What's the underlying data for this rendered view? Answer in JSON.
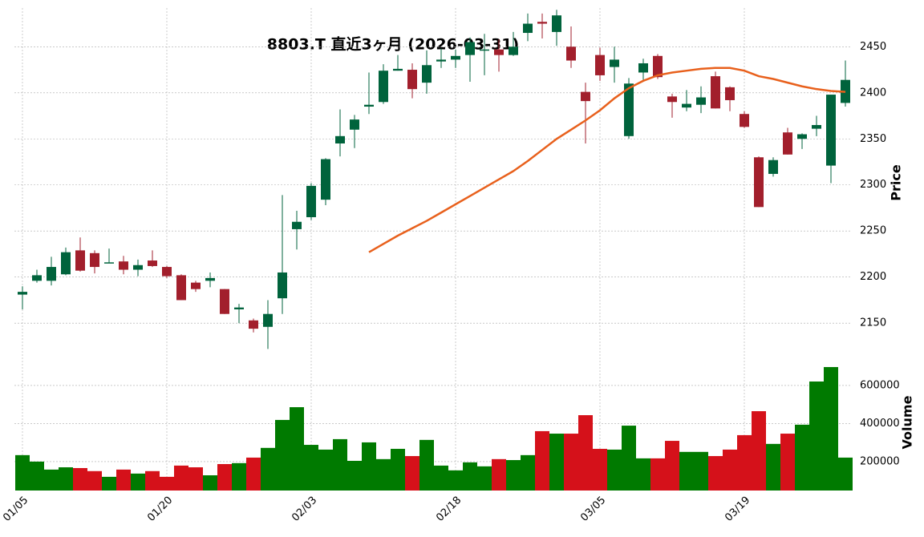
{
  "chart_data": {
    "type": "candlestick",
    "title": "8803.T 直近3ヶ月 (2026-03-31)",
    "categories": [
      "01/05",
      null,
      null,
      null,
      null,
      null,
      null,
      null,
      null,
      null,
      "01/20",
      null,
      null,
      null,
      null,
      null,
      null,
      null,
      null,
      null,
      "02/03",
      null,
      null,
      null,
      null,
      null,
      null,
      null,
      null,
      null,
      "02/18",
      null,
      null,
      null,
      null,
      null,
      null,
      null,
      null,
      null,
      "03/05",
      null,
      null,
      null,
      null,
      null,
      null,
      null,
      null,
      null,
      "03/19",
      null,
      null,
      null,
      null,
      null,
      null,
      null
    ],
    "open": [
      2181,
      2196,
      2196,
      2203,
      2229,
      2226,
      2215,
      2217,
      2208,
      2218,
      2211,
      2202,
      2194,
      2196,
      2187,
      2165,
      2153,
      2146,
      2177,
      2252,
      2265,
      2284,
      2345,
      2360,
      2385,
      2390,
      2424,
      2425,
      2411,
      2434,
      2436,
      2441,
      2446,
      2447,
      2441,
      2465,
      2477,
      2466,
      2450,
      2401,
      2441,
      2428,
      2353,
      2422,
      2440,
      2396,
      2384,
      2387,
      2418,
      2406,
      2377,
      2330,
      2312,
      2357,
      2350,
      2361,
      2321,
      2389
    ],
    "high": [
      2190,
      2208,
      2222,
      2232,
      2243,
      2229,
      2231,
      2223,
      2219,
      2229,
      2212,
      2203,
      2196,
      2205,
      2187,
      2171,
      2155,
      2175,
      2289,
      2272,
      2302,
      2329,
      2382,
      2376,
      2422,
      2431,
      2441,
      2432,
      2446,
      2448,
      2447,
      2460,
      2464,
      2458,
      2466,
      2486,
      2486,
      2490,
      2472,
      2411,
      2449,
      2450,
      2416,
      2437,
      2442,
      2399,
      2403,
      2407,
      2423,
      2407,
      2380,
      2331,
      2330,
      2362,
      2356,
      2375,
      2398,
      2435
    ],
    "low": [
      2165,
      2194,
      2191,
      2202,
      2206,
      2204,
      2215,
      2203,
      2201,
      2211,
      2199,
      2175,
      2184,
      2189,
      2160,
      2150,
      2140,
      2122,
      2160,
      2230,
      2262,
      2278,
      2331,
      2340,
      2377,
      2388,
      2424,
      2394,
      2399,
      2427,
      2427,
      2412,
      2419,
      2423,
      2440,
      2456,
      2459,
      2451,
      2427,
      2345,
      2413,
      2411,
      2350,
      2414,
      2415,
      2373,
      2380,
      2378,
      2383,
      2380,
      2362,
      2276,
      2309,
      2333,
      2339,
      2353,
      2302,
      2385
    ],
    "close": [
      2184,
      2202,
      2211,
      2227,
      2207,
      2211,
      2216,
      2208,
      2213,
      2212,
      2201,
      2175,
      2187,
      2199,
      2160,
      2167,
      2144,
      2160,
      2205,
      2260,
      2299,
      2328,
      2353,
      2371,
      2387,
      2424,
      2426,
      2404,
      2430,
      2436,
      2440,
      2455,
      2447,
      2441,
      2450,
      2475,
      2475,
      2484,
      2435,
      2391,
      2419,
      2436,
      2410,
      2432,
      2417,
      2390,
      2388,
      2395,
      2383,
      2392,
      2363,
      2276,
      2327,
      2333,
      2355,
      2365,
      2398,
      2414
    ],
    "up_color": "#00633c",
    "down_color": "#a21f2c",
    "ylabel": "Price",
    "ylim": [
      2118,
      2492
    ],
    "yticks": [
      2150,
      2200,
      2250,
      2300,
      2350,
      2400,
      2450
    ],
    "grid": true,
    "moving_average": {
      "color": "#e8601c",
      "values": [
        null,
        null,
        null,
        null,
        null,
        null,
        null,
        null,
        null,
        null,
        null,
        null,
        null,
        null,
        null,
        null,
        null,
        null,
        null,
        null,
        null,
        null,
        null,
        null,
        2227,
        2236,
        2245,
        2253,
        2261,
        2270,
        2279,
        2288,
        2297,
        2306,
        2315,
        2326,
        2338,
        2350,
        2360,
        2370,
        2381,
        2394,
        2405,
        2413,
        2419,
        2422,
        2424,
        2426,
        2427,
        2427,
        2424,
        2418,
        2415,
        2411,
        2407,
        2404,
        2402,
        2401
      ]
    },
    "volume": {
      "ylabel": "Volume",
      "up_color": "#007a00",
      "down_color": "#d5111a",
      "ylim": [
        48000,
        760000
      ],
      "yticks": [
        200000,
        400000,
        600000
      ],
      "values": [
        234000,
        200000,
        158000,
        170000,
        166000,
        150000,
        120000,
        158000,
        137000,
        150000,
        120000,
        179000,
        170000,
        128000,
        187000,
        192000,
        221000,
        272000,
        419000,
        486000,
        288000,
        263000,
        318000,
        204000,
        301000,
        213000,
        267000,
        229000,
        314000,
        179000,
        154000,
        196000,
        175000,
        213000,
        208000,
        234000,
        360000,
        347000,
        347000,
        444000,
        267000,
        263000,
        389000,
        217000,
        217000,
        309000,
        251000,
        251000,
        229000,
        263000,
        339000,
        465000,
        293000,
        347000,
        394000,
        621000,
        697000,
        221000
      ]
    }
  }
}
